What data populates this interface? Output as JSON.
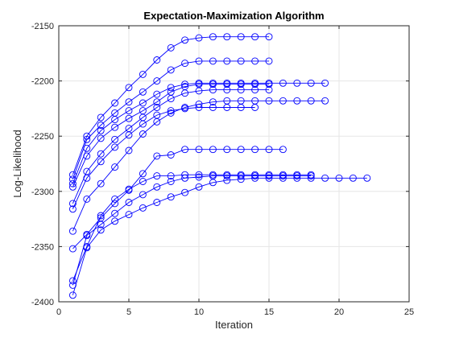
{
  "chart_data": {
    "type": "line",
    "title": "Expectation-Maximization Algorithm",
    "xlabel": "Iteration",
    "ylabel": "Log-Likelihood",
    "xlim": [
      0,
      25
    ],
    "ylim": [
      -2400,
      -2150
    ],
    "xticks": [
      0,
      5,
      10,
      15,
      20,
      25
    ],
    "yticks": [
      -2400,
      -2350,
      -2300,
      -2250,
      -2200,
      -2150
    ],
    "grid": true,
    "legend": "none",
    "marker": "circle",
    "color": "#0000FF",
    "series": [
      {
        "x": [
          1,
          2,
          3,
          4,
          5,
          6,
          7,
          8,
          9,
          10,
          11,
          12,
          13,
          14,
          15
        ],
        "y": [
          -2285,
          -2250,
          -2233,
          -2220,
          -2206,
          -2194,
          -2181,
          -2170,
          -2163,
          -2161,
          -2160,
          -2160,
          -2160,
          -2160,
          -2160
        ]
      },
      {
        "x": [
          1,
          2,
          3,
          4,
          5,
          6,
          7,
          8,
          9,
          10,
          11,
          12,
          13,
          14,
          15
        ],
        "y": [
          -2289,
          -2253,
          -2240,
          -2229,
          -2219,
          -2210,
          -2200,
          -2190,
          -2184,
          -2182,
          -2182,
          -2182,
          -2182,
          -2182,
          -2182
        ]
      },
      {
        "x": [
          1,
          2,
          3,
          4,
          5,
          6,
          7,
          8,
          9,
          10,
          11,
          12,
          13,
          14,
          15,
          16,
          17,
          18,
          19
        ],
        "y": [
          -2293,
          -2261,
          -2245,
          -2235,
          -2227,
          -2220,
          -2212,
          -2206,
          -2203,
          -2202,
          -2202,
          -2202,
          -2202,
          -2202,
          -2202,
          -2202,
          -2202,
          -2202,
          -2202
        ]
      },
      {
        "x": [
          1,
          2,
          3,
          4,
          5,
          6,
          7,
          8,
          9,
          10,
          11,
          12,
          13,
          14,
          15
        ],
        "y": [
          -2296,
          -2268,
          -2252,
          -2242,
          -2234,
          -2227,
          -2219,
          -2210,
          -2205,
          -2203,
          -2203,
          -2203,
          -2203,
          -2203,
          -2203
        ]
      },
      {
        "x": [
          1,
          2,
          3,
          4,
          5,
          6,
          7,
          8,
          9,
          10,
          11,
          12,
          13,
          14,
          15
        ],
        "y": [
          -2311,
          -2282,
          -2266,
          -2253,
          -2243,
          -2233,
          -2224,
          -2216,
          -2211,
          -2209,
          -2208,
          -2208,
          -2208,
          -2208,
          -2208
        ]
      },
      {
        "x": [
          1,
          2,
          3,
          4,
          5,
          6,
          7,
          8,
          9,
          10,
          11,
          12,
          13,
          14
        ],
        "y": [
          -2316,
          -2288,
          -2273,
          -2260,
          -2249,
          -2239,
          -2231,
          -2227,
          -2225,
          -2224,
          -2224,
          -2224,
          -2224,
          -2224
        ]
      },
      {
        "x": [
          1,
          2,
          3,
          4,
          5,
          6,
          7,
          8,
          9,
          10,
          11,
          12,
          13,
          14,
          15,
          16,
          17,
          18,
          19
        ],
        "y": [
          -2336,
          -2307,
          -2293,
          -2278,
          -2263,
          -2248,
          -2237,
          -2229,
          -2224,
          -2221,
          -2219,
          -2218,
          -2218,
          -2218,
          -2218,
          -2218,
          -2218,
          -2218,
          -2218
        ]
      },
      {
        "x": [
          1,
          2,
          3,
          4,
          5,
          6,
          7,
          8,
          9,
          10,
          11,
          12,
          13,
          14,
          15,
          16
        ],
        "y": [
          -2352,
          -2339,
          -2324,
          -2311,
          -2299,
          -2284,
          -2268,
          -2267,
          -2262,
          -2262,
          -2262,
          -2262,
          -2262,
          -2262,
          -2262,
          -2262
        ]
      },
      {
        "x": [
          1,
          2,
          3,
          4,
          5,
          6,
          7,
          8,
          9,
          10,
          11,
          12,
          13,
          14,
          15,
          16,
          17,
          18
        ],
        "y": [
          -2381,
          -2350,
          -2322,
          -2307,
          -2298,
          -2291,
          -2286,
          -2286,
          -2285,
          -2285,
          -2285,
          -2285,
          -2285,
          -2285,
          -2285,
          -2285,
          -2285,
          -2285
        ]
      },
      {
        "x": [
          1,
          2,
          3,
          4,
          5,
          6,
          7,
          8,
          9,
          10,
          11,
          12,
          13,
          14,
          15,
          16,
          17,
          18
        ],
        "y": [
          -2385,
          -2340,
          -2330,
          -2320,
          -2310,
          -2303,
          -2296,
          -2291,
          -2288,
          -2287,
          -2286,
          -2286,
          -2286,
          -2286,
          -2286,
          -2286,
          -2286,
          -2286
        ]
      },
      {
        "x": [
          1,
          2,
          3,
          4,
          5,
          6,
          7,
          8,
          9,
          10,
          11,
          12,
          13,
          14,
          15,
          16,
          17,
          18,
          19,
          20,
          21,
          22
        ],
        "y": [
          -2394,
          -2351,
          -2335,
          -2327,
          -2321,
          -2315,
          -2310,
          -2305,
          -2301,
          -2296,
          -2292,
          -2290,
          -2289,
          -2288,
          -2288,
          -2288,
          -2288,
          -2288,
          -2288,
          -2288,
          -2288,
          -2288
        ]
      }
    ]
  }
}
